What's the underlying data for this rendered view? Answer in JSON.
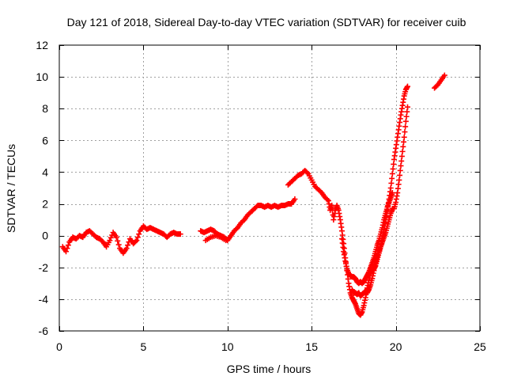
{
  "chart_data": {
    "type": "scatter",
    "title": "Day 121 of 2018, Sidereal Day-to-day VTEC variation (SDTVAR) for receiver cuib",
    "xlabel": "GPS time / hours",
    "ylabel": "SDTVAR / TECUs",
    "xlim": [
      0,
      25
    ],
    "ylim": [
      -6,
      12
    ],
    "xticks": [
      0,
      5,
      10,
      15,
      20,
      25
    ],
    "yticks": [
      -6,
      -4,
      -2,
      0,
      2,
      4,
      6,
      8,
      10,
      12
    ],
    "grid": true,
    "marker": "+",
    "series": [
      {
        "name": "SDTVAR",
        "color": "#ff0000",
        "segments": [
          [
            [
              0.2,
              -0.7
            ],
            [
              0.4,
              -1.0
            ],
            [
              0.6,
              -0.4
            ],
            [
              0.8,
              -0.1
            ],
            [
              1.0,
              -0.2
            ],
            [
              1.2,
              0.0
            ],
            [
              1.4,
              -0.1
            ],
            [
              1.6,
              0.2
            ],
            [
              1.8,
              0.3
            ],
            [
              2.0,
              0.1
            ],
            [
              2.2,
              -0.1
            ],
            [
              2.4,
              -0.2
            ],
            [
              2.6,
              -0.4
            ],
            [
              2.8,
              -0.7
            ],
            [
              3.0,
              -0.3
            ],
            [
              3.2,
              0.2
            ],
            [
              3.4,
              -0.1
            ],
            [
              3.6,
              -0.8
            ],
            [
              3.8,
              -1.1
            ],
            [
              4.0,
              -0.8
            ],
            [
              4.2,
              -0.2
            ],
            [
              4.4,
              -0.5
            ],
            [
              4.6,
              -0.3
            ],
            [
              4.8,
              0.3
            ],
            [
              5.0,
              0.6
            ],
            [
              5.2,
              0.4
            ],
            [
              5.4,
              0.5
            ],
            [
              5.6,
              0.4
            ],
            [
              5.8,
              0.3
            ],
            [
              6.0,
              0.2
            ],
            [
              6.2,
              0.1
            ],
            [
              6.4,
              -0.1
            ],
            [
              6.6,
              0.1
            ],
            [
              6.8,
              0.2
            ],
            [
              7.0,
              0.1
            ],
            [
              7.2,
              0.1
            ]
          ],
          [
            [
              8.4,
              0.3
            ],
            [
              8.6,
              0.2
            ],
            [
              8.8,
              0.3
            ],
            [
              9.0,
              0.4
            ],
            [
              9.2,
              0.3
            ],
            [
              9.4,
              0.1
            ],
            [
              9.6,
              0.0
            ],
            [
              9.8,
              -0.1
            ],
            [
              10.0,
              -0.3
            ],
            [
              10.2,
              0.0
            ],
            [
              10.4,
              0.3
            ],
            [
              10.6,
              0.5
            ],
            [
              10.8,
              0.8
            ],
            [
              11.0,
              1.0
            ],
            [
              11.2,
              1.3
            ],
            [
              11.4,
              1.5
            ],
            [
              11.6,
              1.7
            ],
            [
              11.8,
              1.9
            ],
            [
              12.0,
              1.9
            ],
            [
              12.2,
              1.8
            ],
            [
              12.4,
              1.9
            ],
            [
              12.6,
              1.8
            ],
            [
              12.8,
              1.9
            ],
            [
              13.0,
              1.8
            ],
            [
              13.2,
              1.9
            ],
            [
              13.4,
              1.9
            ],
            [
              13.6,
              2.0
            ],
            [
              13.8,
              2.0
            ],
            [
              14.0,
              2.3
            ]
          ],
          [
            [
              8.7,
              -0.3
            ],
            [
              9.0,
              -0.1
            ],
            [
              9.3,
              0.0
            ],
            [
              9.6,
              -0.1
            ],
            [
              9.9,
              -0.3
            ]
          ],
          [
            [
              13.6,
              3.2
            ],
            [
              13.8,
              3.4
            ],
            [
              14.0,
              3.6
            ],
            [
              14.2,
              3.8
            ],
            [
              14.4,
              3.9
            ],
            [
              14.6,
              4.1
            ],
            [
              14.8,
              3.9
            ],
            [
              15.0,
              3.5
            ],
            [
              15.2,
              3.1
            ],
            [
              15.4,
              2.9
            ],
            [
              15.6,
              2.7
            ],
            [
              15.8,
              2.4
            ],
            [
              16.0,
              2.2
            ],
            [
              16.1,
              1.6
            ],
            [
              16.2,
              1.9
            ],
            [
              16.3,
              1.0
            ],
            [
              16.4,
              1.6
            ],
            [
              16.5,
              1.9
            ],
            [
              16.6,
              1.6
            ],
            [
              16.7,
              1.0
            ],
            [
              16.8,
              0.3
            ],
            [
              16.9,
              -0.5
            ],
            [
              17.0,
              -1.4
            ],
            [
              17.1,
              -2.2
            ],
            [
              17.2,
              -3.0
            ],
            [
              17.3,
              -3.6
            ],
            [
              17.4,
              -3.9
            ],
            [
              17.5,
              -4.1
            ],
            [
              17.6,
              -4.3
            ],
            [
              17.7,
              -4.6
            ],
            [
              17.8,
              -4.9
            ],
            [
              17.9,
              -5.0
            ],
            [
              18.0,
              -4.8
            ],
            [
              18.1,
              -4.4
            ],
            [
              18.2,
              -3.9
            ],
            [
              18.3,
              -3.3
            ],
            [
              18.4,
              -2.8
            ],
            [
              18.5,
              -2.4
            ],
            [
              18.6,
              -2.2
            ],
            [
              18.7,
              -2.1
            ],
            [
              18.8,
              -1.9
            ],
            [
              18.9,
              -1.5
            ],
            [
              19.0,
              -1.1
            ],
            [
              19.1,
              -0.7
            ],
            [
              19.2,
              -0.2
            ],
            [
              19.3,
              0.4
            ],
            [
              19.4,
              1.0
            ],
            [
              19.5,
              1.6
            ],
            [
              19.6,
              2.3
            ],
            [
              19.7,
              3.0
            ],
            [
              19.8,
              3.9
            ],
            [
              19.9,
              4.8
            ],
            [
              20.0,
              5.5
            ],
            [
              20.1,
              6.2
            ],
            [
              20.2,
              6.9
            ],
            [
              20.3,
              7.6
            ],
            [
              20.4,
              8.2
            ],
            [
              20.5,
              8.8
            ],
            [
              20.6,
              9.2
            ],
            [
              20.7,
              9.4
            ]
          ],
          [
            [
              16.8,
              -0.2
            ],
            [
              16.9,
              -1.0
            ],
            [
              17.0,
              -1.6
            ],
            [
              17.1,
              -2.1
            ],
            [
              17.2,
              -2.4
            ],
            [
              17.3,
              -2.5
            ],
            [
              17.4,
              -2.6
            ],
            [
              17.5,
              -2.6
            ],
            [
              17.6,
              -2.7
            ],
            [
              17.7,
              -2.9
            ],
            [
              17.8,
              -3.0
            ],
            [
              17.9,
              -2.9
            ],
            [
              18.0,
              -3.0
            ],
            [
              18.1,
              -2.9
            ],
            [
              18.2,
              -2.7
            ],
            [
              18.3,
              -2.5
            ],
            [
              18.4,
              -2.3
            ],
            [
              18.5,
              -2.0
            ],
            [
              18.6,
              -1.7
            ],
            [
              18.7,
              -1.4
            ],
            [
              18.8,
              -1.0
            ],
            [
              18.9,
              -0.6
            ],
            [
              19.0,
              -0.3
            ],
            [
              19.1,
              0.1
            ],
            [
              19.2,
              0.5
            ],
            [
              19.3,
              1.0
            ],
            [
              19.4,
              1.4
            ],
            [
              19.5,
              1.8
            ],
            [
              19.6,
              2.1
            ],
            [
              19.7,
              2.4
            ],
            [
              19.8,
              2.7
            ]
          ],
          [
            [
              17.4,
              -3.4
            ],
            [
              17.5,
              -3.6
            ],
            [
              17.6,
              -3.6
            ],
            [
              17.7,
              -3.7
            ],
            [
              17.8,
              -3.6
            ],
            [
              17.9,
              -3.8
            ],
            [
              18.0,
              -3.7
            ],
            [
              18.1,
              -3.6
            ],
            [
              18.2,
              -3.5
            ],
            [
              18.3,
              -3.6
            ],
            [
              18.4,
              -3.4
            ],
            [
              18.5,
              -3.1
            ],
            [
              18.6,
              -2.7
            ],
            [
              18.7,
              -2.2
            ],
            [
              18.8,
              -1.7
            ],
            [
              18.9,
              -1.3
            ],
            [
              19.0,
              -1.0
            ],
            [
              19.1,
              -0.7
            ],
            [
              19.2,
              -0.4
            ],
            [
              19.3,
              -0.1
            ],
            [
              19.4,
              0.2
            ],
            [
              19.5,
              0.6
            ],
            [
              19.6,
              1.0
            ],
            [
              19.7,
              1.4
            ],
            [
              19.8,
              1.7
            ],
            [
              19.9,
              1.7
            ],
            [
              20.0,
              2.1
            ],
            [
              20.1,
              2.7
            ],
            [
              20.2,
              3.5
            ],
            [
              20.3,
              4.4
            ],
            [
              20.4,
              5.3
            ],
            [
              20.5,
              6.2
            ],
            [
              20.6,
              7.2
            ],
            [
              20.7,
              8.1
            ]
          ],
          [
            [
              22.3,
              9.3
            ],
            [
              22.5,
              9.5
            ],
            [
              22.7,
              9.8
            ],
            [
              22.9,
              10.1
            ]
          ]
        ]
      }
    ]
  }
}
